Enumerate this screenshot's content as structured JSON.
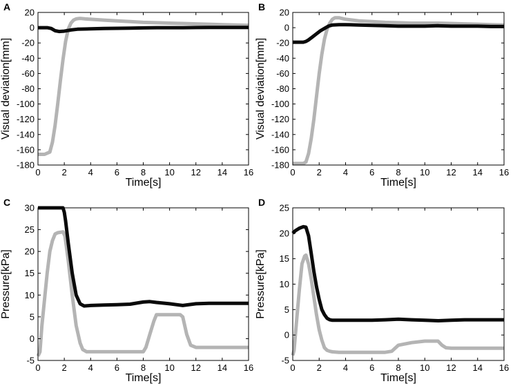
{
  "figure": {
    "background": "#ffffff",
    "frame_color": "#000000"
  },
  "series_colors": {
    "black": "#0a0a0a",
    "gray": "#b4b4b4"
  },
  "chart_data": [
    {
      "panel": "A",
      "type": "line",
      "title": "",
      "xlabel": "Time[s]",
      "ylabel": "Visual deviation[mm]",
      "xlim": [
        0,
        16
      ],
      "ylim": [
        -180,
        20
      ],
      "xticks": [
        0,
        2,
        4,
        6,
        8,
        10,
        12,
        14,
        16
      ],
      "yticks": [
        20,
        0,
        -20,
        -40,
        -60,
        -80,
        -100,
        -120,
        -140,
        -160,
        -180
      ],
      "grid": false,
      "series": [
        {
          "name": "gray",
          "color": "gray",
          "x": [
            0,
            0.5,
            0.9,
            1.1,
            1.3,
            1.5,
            1.7,
            1.9,
            2.1,
            2.3,
            2.5,
            2.7,
            2.9,
            3.1,
            3.3,
            3.6,
            4,
            5,
            6,
            7,
            8,
            9,
            10,
            11,
            12,
            13,
            14,
            15,
            16
          ],
          "values": [
            -166,
            -166,
            -163,
            -150,
            -128,
            -100,
            -70,
            -42,
            -18,
            -2,
            6,
            10,
            11.5,
            12,
            12,
            11.5,
            11,
            10,
            9,
            8,
            7,
            6.5,
            6,
            5.5,
            5,
            4.5,
            4,
            3.5,
            3
          ]
        },
        {
          "name": "black",
          "color": "black",
          "x": [
            0,
            0.7,
            1.0,
            1.3,
            1.6,
            2.0,
            2.5,
            3,
            4,
            5,
            6,
            7,
            8,
            9,
            10,
            11,
            12,
            13,
            14,
            15,
            16
          ],
          "values": [
            0,
            0,
            -1,
            -4,
            -5,
            -4.5,
            -3,
            -2,
            -1.5,
            -1,
            -0.8,
            -0.5,
            -0.3,
            0,
            0,
            0,
            0.2,
            0.3,
            0.3,
            0.3,
            0.3
          ]
        }
      ]
    },
    {
      "panel": "B",
      "type": "line",
      "title": "",
      "xlabel": "Time[s]",
      "ylabel": "Visual deviation[mm]",
      "xlim": [
        0,
        16
      ],
      "ylim": [
        -180,
        20
      ],
      "xticks": [
        0,
        2,
        4,
        6,
        8,
        10,
        12,
        14,
        16
      ],
      "yticks": [
        20,
        0,
        -20,
        -40,
        -60,
        -80,
        -100,
        -120,
        -140,
        -160,
        -180
      ],
      "grid": false,
      "series": [
        {
          "name": "gray",
          "color": "gray",
          "x": [
            0,
            0.8,
            1.0,
            1.2,
            1.4,
            1.6,
            1.8,
            2.0,
            2.2,
            2.4,
            2.6,
            2.8,
            3.0,
            3.2,
            3.5,
            4,
            5,
            6,
            7,
            8,
            9,
            10,
            11,
            12,
            13,
            14,
            15,
            16
          ],
          "values": [
            -178,
            -178,
            -176,
            -165,
            -145,
            -120,
            -90,
            -60,
            -35,
            -15,
            -2,
            6,
            11,
            13,
            13,
            11,
            9,
            8,
            7,
            6.5,
            6,
            6,
            6,
            5.5,
            5,
            4.5,
            4,
            3.5
          ]
        },
        {
          "name": "black",
          "color": "black",
          "x": [
            0,
            0.8,
            1.0,
            1.2,
            1.5,
            1.8,
            2.1,
            2.4,
            2.7,
            3.0,
            3.5,
            4,
            5,
            6,
            7,
            8,
            9,
            10,
            11,
            12,
            13,
            14,
            15,
            16
          ],
          "values": [
            -19,
            -19,
            -18,
            -16,
            -12,
            -8,
            -4,
            -1,
            2,
            3.5,
            4,
            4,
            3.5,
            3,
            2.5,
            2,
            2,
            2,
            2.5,
            2,
            2,
            2,
            1.5,
            1.5
          ]
        }
      ]
    },
    {
      "panel": "C",
      "type": "line",
      "title": "",
      "xlabel": "Time[s]",
      "ylabel": "Pressure[kPa]",
      "xlim": [
        0,
        16
      ],
      "ylim": [
        -5,
        30
      ],
      "xticks": [
        0,
        2,
        4,
        6,
        8,
        10,
        12,
        14,
        16
      ],
      "yticks": [
        30,
        25,
        20,
        15,
        10,
        5,
        0,
        -5
      ],
      "grid": false,
      "series": [
        {
          "name": "gray",
          "color": "gray",
          "x": [
            0,
            0.15,
            0.3,
            0.5,
            0.7,
            0.9,
            1.1,
            1.3,
            1.5,
            1.7,
            1.9,
            2.05,
            2.3,
            2.6,
            2.9,
            3.2,
            3.4,
            3.7,
            4,
            5,
            6,
            7,
            8,
            8.2,
            8.5,
            8.8,
            9,
            10,
            10.8,
            11,
            11.3,
            11.6,
            12,
            13,
            14,
            15,
            16
          ],
          "values": [
            -4,
            -3,
            3,
            9,
            15,
            20,
            22.5,
            24,
            24.3,
            24.4,
            24.5,
            23.5,
            18,
            10,
            3,
            -1,
            -2.5,
            -3,
            -3,
            -3,
            -3,
            -3,
            -3,
            -2,
            1,
            4,
            5.5,
            5.5,
            5.5,
            5,
            1,
            -1.5,
            -2,
            -2,
            -2,
            -2,
            -2
          ]
        },
        {
          "name": "black",
          "color": "black",
          "x": [
            0,
            1.0,
            1.9,
            2.0,
            2.1,
            2.3,
            2.6,
            2.9,
            3.2,
            3.5,
            4,
            5,
            6,
            7,
            8,
            8.5,
            9,
            10,
            11,
            12,
            13,
            14,
            15,
            16
          ],
          "values": [
            30,
            30,
            30,
            29,
            27,
            22,
            15,
            10,
            8,
            7.5,
            7.6,
            7.7,
            7.8,
            7.9,
            8.4,
            8.5,
            8.3,
            8,
            7.6,
            8,
            8.1,
            8.1,
            8.1,
            8.1
          ]
        }
      ]
    },
    {
      "panel": "D",
      "type": "line",
      "title": "",
      "xlabel": "Time[s]",
      "ylabel": "Pressure[kPa]",
      "xlim": [
        0,
        16
      ],
      "ylim": [
        -5,
        25
      ],
      "xticks": [
        0,
        2,
        4,
        6,
        8,
        10,
        12,
        14,
        16
      ],
      "yticks": [
        25,
        20,
        15,
        10,
        5,
        0,
        -5
      ],
      "grid": false,
      "series": [
        {
          "name": "gray",
          "color": "gray",
          "x": [
            0,
            0.1,
            0.3,
            0.5,
            0.7,
            0.9,
            1.0,
            1.2,
            1.4,
            1.6,
            1.8,
            2.0,
            2.2,
            2.4,
            2.6,
            2.8,
            3.0,
            3.5,
            4,
            5,
            6,
            7,
            7.5,
            8,
            9,
            10,
            11,
            11.3,
            11.6,
            12,
            13,
            14,
            15,
            16
          ],
          "values": [
            -4,
            -3,
            3,
            9,
            14,
            15.5,
            15.7,
            14,
            11,
            7.5,
            4,
            1,
            -1,
            -2.5,
            -3,
            -3.2,
            -3.3,
            -3.4,
            -3.4,
            -3.4,
            -3.4,
            -3.4,
            -3.2,
            -2,
            -1.5,
            -1.2,
            -1.2,
            -2,
            -2.5,
            -2.6,
            -2.6,
            -2.6,
            -2.6,
            -2.6
          ]
        },
        {
          "name": "black",
          "color": "black",
          "x": [
            0,
            0.2,
            0.5,
            0.8,
            1.0,
            1.2,
            1.4,
            1.6,
            1.8,
            2.0,
            2.2,
            2.4,
            2.6,
            2.8,
            3.0,
            3.5,
            4,
            5,
            6,
            7,
            8,
            9,
            10,
            11,
            12,
            13,
            14,
            15,
            16
          ],
          "values": [
            20,
            20.5,
            21,
            21.3,
            21.2,
            19.5,
            16,
            12.5,
            9.5,
            7,
            5,
            4,
            3.3,
            3.0,
            2.9,
            2.9,
            2.9,
            2.9,
            2.9,
            3.0,
            3.1,
            3.0,
            2.9,
            2.8,
            2.9,
            3.0,
            3.0,
            3.0,
            3.0
          ]
        }
      ]
    }
  ]
}
